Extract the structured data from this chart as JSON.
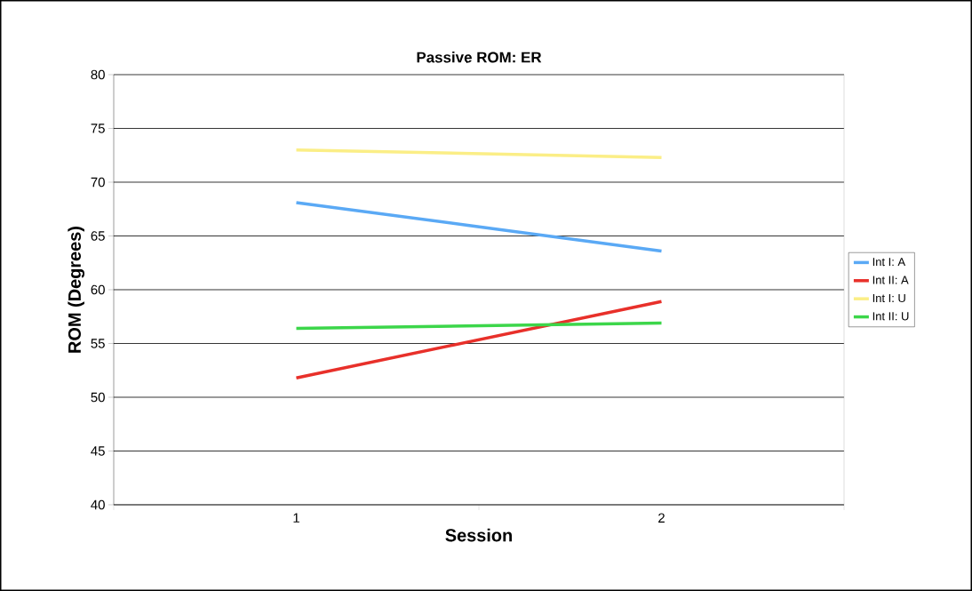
{
  "chart_data": {
    "type": "line",
    "title": "Passive ROM: ER",
    "xlabel": "Session",
    "ylabel": "ROM (Degrees)",
    "categories": [
      "1",
      "2"
    ],
    "series": [
      {
        "name": "Int I: A",
        "color": "#5aa9f5",
        "values": [
          68.1,
          63.6
        ]
      },
      {
        "name": "Int II: A",
        "color": "#e8302a",
        "values": [
          51.8,
          58.9
        ]
      },
      {
        "name": "Int I: U",
        "color": "#fbee86",
        "values": [
          73.0,
          72.3
        ]
      },
      {
        "name": "Int II: U",
        "color": "#3cd64a",
        "values": [
          56.4,
          56.9
        ]
      }
    ],
    "ylim": [
      40,
      80
    ],
    "yticks": [
      40,
      45,
      50,
      55,
      60,
      65,
      70,
      75,
      80
    ],
    "grid": "y",
    "legend": "right",
    "marker": "none",
    "line_style": "solid"
  }
}
